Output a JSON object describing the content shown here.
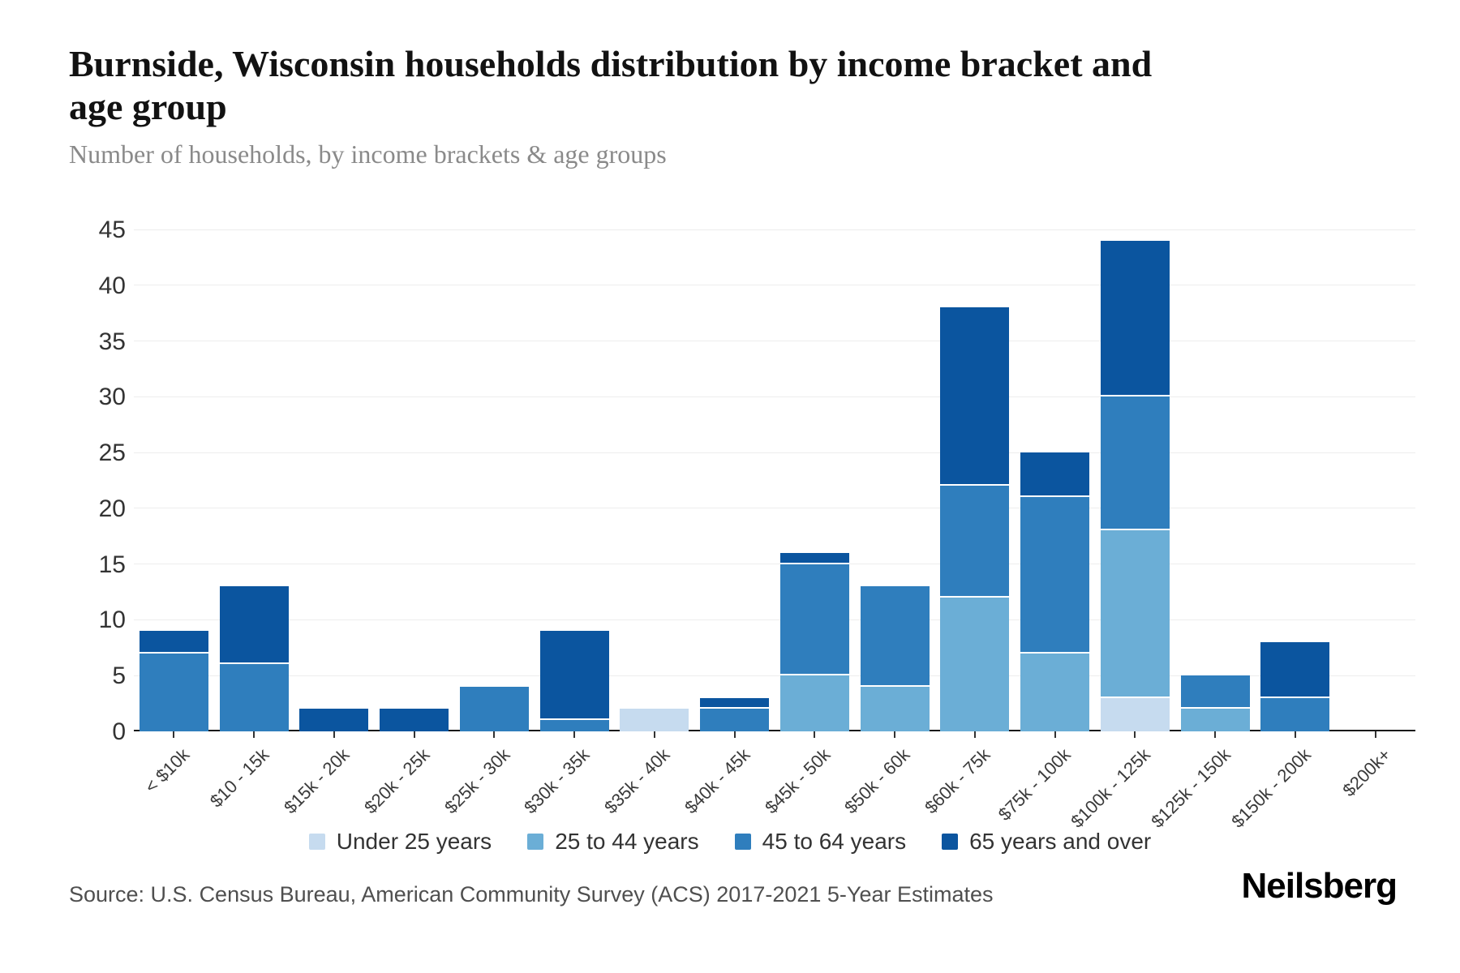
{
  "header": {
    "title": "Burnside, Wisconsin households distribution by income bracket and age group",
    "subtitle": "Number of households, by income brackets & age groups"
  },
  "footer": {
    "source": "Source: U.S. Census Bureau, American Community Survey (ACS) 2017-2021 5-Year Estimates",
    "brand": "Neilsberg"
  },
  "colors": {
    "under_25": "#c6dbef",
    "25_to_44": "#6baed6",
    "45_to_64": "#2f7ebd",
    "65_and_over": "#0b559f",
    "gridline": "#ededed",
    "axis": "#1a1a1a"
  },
  "chart_data": {
    "type": "bar",
    "stacked": true,
    "title": "Burnside, Wisconsin households distribution by income bracket and age group",
    "subtitle": "Number of households, by income brackets & age groups",
    "xlabel": "",
    "ylabel": "Number of households",
    "ylim": [
      0,
      45
    ],
    "y_ticks": [
      0,
      5,
      10,
      15,
      20,
      25,
      30,
      35,
      40,
      45
    ],
    "grid": "horizontal",
    "legend_position": "bottom",
    "categories": [
      "< $10k",
      "$10 - 15k",
      "$15k - 20k",
      "$20k - 25k",
      "$25k - 30k",
      "$30k - 35k",
      "$35k - 40k",
      "$40k - 45k",
      "$45k - 50k",
      "$50k - 60k",
      "$60k - 75k",
      "$75k - 100k",
      "$100k - 125k",
      "$125k - 150k",
      "$150k - 200k",
      "$200k+"
    ],
    "series": [
      {
        "name": "Under 25 years",
        "color": "#c6dbef",
        "values": [
          0,
          0,
          0,
          0,
          0,
          0,
          2,
          0,
          0,
          0,
          0,
          0,
          3,
          0,
          0,
          0
        ]
      },
      {
        "name": "25 to 44 years",
        "color": "#6baed6",
        "values": [
          0,
          0,
          0,
          0,
          0,
          0,
          0,
          0,
          5,
          4,
          12,
          7,
          15,
          2,
          0,
          0
        ]
      },
      {
        "name": "45 to 64 years",
        "color": "#2f7ebd",
        "values": [
          7,
          6,
          0,
          0,
          4,
          1,
          0,
          2,
          10,
          9,
          10,
          14,
          12,
          3,
          3,
          0
        ]
      },
      {
        "name": "65 years and over",
        "color": "#0b559f",
        "values": [
          2,
          7,
          2,
          2,
          0,
          8,
          0,
          1,
          1,
          0,
          16,
          4,
          14,
          0,
          5,
          0
        ]
      }
    ],
    "totals": [
      9,
      13,
      2,
      2,
      4,
      9,
      2,
      3,
      16,
      13,
      38,
      25,
      44,
      5,
      8,
      0
    ]
  }
}
